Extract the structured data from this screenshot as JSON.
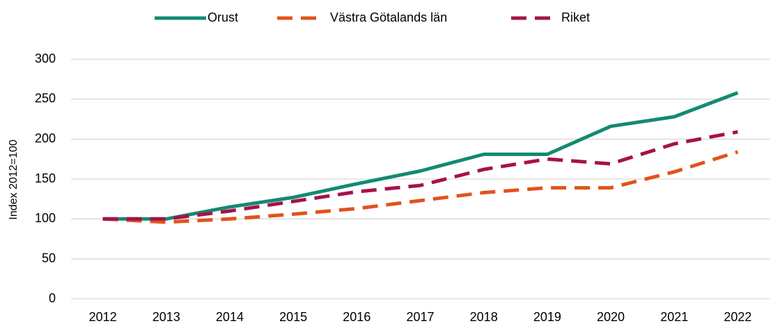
{
  "chart_data": {
    "type": "line",
    "y_label": "Index 2012=100",
    "categories": [
      "2012",
      "2013",
      "2014",
      "2015",
      "2016",
      "2017",
      "2018",
      "2019",
      "2020",
      "2021",
      "2022"
    ],
    "series": [
      {
        "name": "Orust",
        "color": "#138a72",
        "dashed": false,
        "values": [
          100,
          100,
          115,
          127,
          144,
          160,
          181,
          181,
          216,
          228,
          258
        ]
      },
      {
        "name": "Västra Götalands län",
        "color": "#e0541b",
        "dashed": true,
        "values": [
          100,
          96,
          100,
          106,
          113,
          123,
          133,
          139,
          139,
          159,
          184
        ]
      },
      {
        "name": "Riket",
        "color": "#a5124a",
        "dashed": true,
        "values": [
          100,
          100,
          110,
          122,
          134,
          142,
          162,
          175,
          169,
          194,
          209
        ]
      }
    ],
    "ylim": [
      0,
      300
    ],
    "yticks": [
      0,
      50,
      100,
      150,
      200,
      250,
      300
    ],
    "grid": true,
    "legend": "top"
  }
}
